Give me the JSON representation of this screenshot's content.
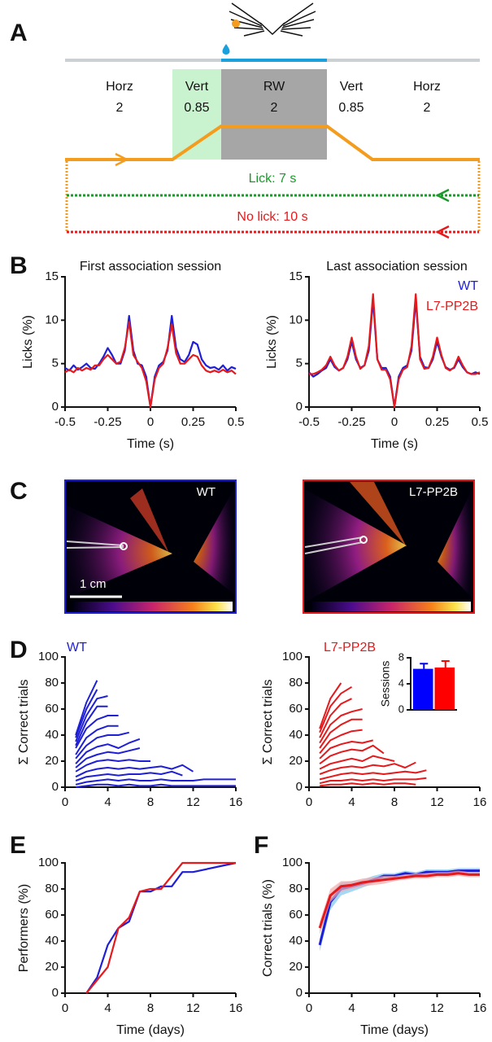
{
  "panel_labels": [
    "A",
    "B",
    "C",
    "D",
    "E",
    "F"
  ],
  "panel_a": {
    "zones": [
      {
        "name": "Horz",
        "value": "2"
      },
      {
        "name": "Vert",
        "value": "0.85"
      },
      {
        "name": "RW",
        "value": "2"
      },
      {
        "name": "Vert",
        "value": "0.85"
      },
      {
        "name": "Horz",
        "value": "2"
      }
    ],
    "lick": "Lick: 7 s",
    "no_lick": "No lick: 10 s"
  },
  "panel_c": {
    "labels": [
      "WT",
      "L7-PP2B"
    ],
    "scale_bar": "1 cm"
  },
  "chart_data": [
    {
      "type": "line",
      "title": "First association session",
      "xlabel": "Time (s)",
      "ylabel": "Licks (%)",
      "xlim": [
        -0.5,
        0.5
      ],
      "xticks": [
        -0.5,
        -0.25,
        0,
        0.25,
        0.5
      ],
      "ylim": [
        0,
        15
      ],
      "yticks": [
        0,
        5,
        10,
        15
      ],
      "x": [
        -0.5,
        -0.475,
        -0.45,
        -0.425,
        -0.4,
        -0.375,
        -0.35,
        -0.325,
        -0.3,
        -0.275,
        -0.25,
        -0.225,
        -0.2,
        -0.175,
        -0.15,
        -0.125,
        -0.1,
        -0.075,
        -0.05,
        -0.025,
        0,
        0.025,
        0.05,
        0.075,
        0.1,
        0.125,
        0.15,
        0.175,
        0.2,
        0.225,
        0.25,
        0.275,
        0.3,
        0.325,
        0.35,
        0.375,
        0.4,
        0.425,
        0.45,
        0.475,
        0.5
      ],
      "series": [
        {
          "color": "#1f1fd6",
          "values": [
            4.5,
            4.2,
            4.8,
            4.3,
            4.6,
            5.0,
            4.5,
            4.4,
            5.0,
            5.8,
            6.8,
            6.0,
            5.0,
            5.0,
            6.5,
            10.5,
            6.5,
            5.0,
            4.8,
            3.5,
            0,
            3.5,
            4.8,
            5.2,
            6.5,
            10.5,
            6.8,
            5.5,
            5.2,
            6.0,
            7.5,
            7.2,
            5.5,
            4.8,
            4.5,
            4.6,
            4.3,
            4.8,
            4.2,
            4.6,
            4.4
          ]
        },
        {
          "color": "#e41a1c",
          "values": [
            4.0,
            4.3,
            4.0,
            4.5,
            4.2,
            4.5,
            4.3,
            4.8,
            4.8,
            5.5,
            6.0,
            5.5,
            5.0,
            5.2,
            6.8,
            9.8,
            6.0,
            5.2,
            4.5,
            3.0,
            0,
            3.2,
            4.5,
            5.0,
            6.8,
            9.5,
            6.2,
            5.0,
            5.0,
            5.5,
            6.0,
            5.8,
            4.8,
            4.2,
            4.0,
            4.2,
            4.0,
            4.3,
            4.0,
            4.2,
            3.8
          ]
        }
      ]
    },
    {
      "type": "line",
      "title": "Last association session",
      "xlabel": "Time (s)",
      "ylabel": "Licks (%)",
      "xlim": [
        -0.5,
        0.5
      ],
      "xticks": [
        -0.5,
        -0.25,
        0,
        0.25,
        0.5
      ],
      "ylim": [
        0,
        15
      ],
      "yticks": [
        0,
        5,
        10,
        15
      ],
      "x": [
        -0.5,
        -0.475,
        -0.45,
        -0.425,
        -0.4,
        -0.375,
        -0.35,
        -0.325,
        -0.3,
        -0.275,
        -0.25,
        -0.225,
        -0.2,
        -0.175,
        -0.15,
        -0.125,
        -0.1,
        -0.075,
        -0.05,
        -0.025,
        0,
        0.025,
        0.05,
        0.075,
        0.1,
        0.125,
        0.15,
        0.175,
        0.2,
        0.225,
        0.25,
        0.275,
        0.3,
        0.325,
        0.35,
        0.375,
        0.4,
        0.425,
        0.45,
        0.475,
        0.5
      ],
      "legend": "upper right",
      "series": [
        {
          "name": "WT",
          "color": "#1f1fd6",
          "values": [
            4.0,
            3.5,
            3.8,
            4.2,
            4.5,
            5.5,
            4.6,
            4.2,
            4.5,
            5.5,
            7.5,
            5.5,
            4.5,
            4.8,
            6.5,
            12.3,
            5.5,
            4.5,
            4.5,
            3.5,
            0,
            3.5,
            4.5,
            4.8,
            6.5,
            12.3,
            5.8,
            4.6,
            4.5,
            5.5,
            7.5,
            5.8,
            4.6,
            4.3,
            4.5,
            5.5,
            4.6,
            4.0,
            3.8,
            4.0,
            3.8
          ]
        },
        {
          "name": "L7-PP2B",
          "color": "#e41a1c",
          "values": [
            3.8,
            3.8,
            4.0,
            4.3,
            4.8,
            5.8,
            4.8,
            4.2,
            4.5,
            5.8,
            8.0,
            5.8,
            4.4,
            4.8,
            7.0,
            13.0,
            5.5,
            4.3,
            4.3,
            3.2,
            0,
            3.2,
            4.3,
            4.6,
            7.0,
            13.0,
            5.5,
            4.4,
            4.5,
            5.8,
            8.0,
            6.0,
            4.5,
            4.2,
            4.6,
            5.8,
            4.8,
            4.0,
            3.8,
            3.8,
            4.0
          ]
        }
      ]
    },
    {
      "type": "line",
      "title": "WT",
      "title_color": "#1f1fd6",
      "ylabel": "Σ Correct trials",
      "xlim": [
        0,
        16
      ],
      "xticks": [
        0,
        4,
        8,
        12,
        16
      ],
      "ylim": [
        0,
        100
      ],
      "yticks": [
        0,
        20,
        40,
        60,
        80,
        100
      ],
      "series": [
        {
          "color": "#1f1fd6",
          "x": [
            1,
            2,
            3
          ],
          "values": [
            40,
            65,
            82
          ]
        },
        {
          "color": "#1f1fd6",
          "x": [
            1,
            2,
            3
          ],
          "values": [
            38,
            60,
            75
          ]
        },
        {
          "color": "#1f1fd6",
          "x": [
            1,
            2,
            3,
            4
          ],
          "values": [
            35,
            55,
            68,
            70
          ]
        },
        {
          "color": "#1f1fd6",
          "x": [
            1,
            2,
            3,
            4
          ],
          "values": [
            32,
            50,
            62,
            62
          ]
        },
        {
          "color": "#1f1fd6",
          "x": [
            1,
            2,
            3,
            4,
            5
          ],
          "values": [
            30,
            45,
            52,
            55,
            55
          ]
        },
        {
          "color": "#1f1fd6",
          "x": [
            1,
            2,
            3,
            4,
            5
          ],
          "values": [
            25,
            38,
            44,
            47,
            47
          ]
        },
        {
          "color": "#1f1fd6",
          "x": [
            1,
            2,
            3,
            4,
            5,
            6
          ],
          "values": [
            22,
            32,
            38,
            40,
            40,
            42
          ]
        },
        {
          "color": "#1f1fd6",
          "x": [
            1,
            2,
            3,
            4,
            5,
            6,
            7
          ],
          "values": [
            18,
            27,
            31,
            33,
            30,
            34,
            37
          ]
        },
        {
          "color": "#1f1fd6",
          "x": [
            1,
            2,
            3,
            4,
            5,
            6,
            7
          ],
          "values": [
            15,
            22,
            25,
            27,
            26,
            28,
            30
          ]
        },
        {
          "color": "#1f1fd6",
          "x": [
            1,
            2,
            3,
            4,
            5,
            6,
            7,
            8
          ],
          "values": [
            12,
            17,
            20,
            21,
            20,
            21,
            20,
            20
          ]
        },
        {
          "color": "#1f1fd6",
          "x": [
            1,
            2,
            3,
            4,
            5,
            6,
            7,
            8,
            9,
            10,
            11,
            12
          ],
          "values": [
            8,
            12,
            14,
            15,
            14,
            15,
            14,
            15,
            16,
            14,
            17,
            12
          ]
        },
        {
          "color": "#1f1fd6",
          "x": [
            1,
            2,
            3,
            4,
            5,
            6,
            7,
            8,
            9,
            10,
            11
          ],
          "values": [
            5,
            8,
            9,
            10,
            9,
            10,
            10,
            11,
            10,
            12,
            9
          ]
        },
        {
          "color": "#1f1fd6",
          "x": [
            1,
            2,
            3,
            4,
            5,
            6,
            7,
            8,
            9,
            10,
            11,
            12,
            13,
            14,
            15,
            16
          ],
          "values": [
            2,
            4,
            5,
            6,
            5,
            6,
            5,
            5,
            6,
            5,
            5,
            5,
            6,
            6,
            6,
            6
          ]
        },
        {
          "color": "#1f1fd6",
          "x": [
            1,
            2,
            3,
            4,
            5,
            6,
            7,
            8,
            9,
            10,
            11,
            12,
            13,
            14,
            15,
            16
          ],
          "values": [
            0,
            1,
            2,
            2,
            1,
            2,
            1,
            1,
            2,
            1,
            1,
            1,
            1,
            1,
            1,
            1
          ]
        }
      ]
    },
    {
      "type": "bar",
      "ylabel": "Sessions",
      "ylim": [
        0,
        8
      ],
      "yticks": [
        0,
        4,
        8
      ],
      "categories": [
        null,
        null
      ],
      "values": [
        6.3,
        6.5
      ],
      "errors": [
        0.8,
        1.0
      ],
      "colors": [
        "#0000ff",
        "#ff0000"
      ]
    },
    {
      "type": "line",
      "title": "L7-PP2B",
      "title_color": "#e41a1c",
      "ylabel": "Σ Correct trials",
      "xlim": [
        0,
        16
      ],
      "xticks": [
        0,
        4,
        8,
        12,
        16
      ],
      "ylim": [
        0,
        100
      ],
      "yticks": [
        0,
        20,
        40,
        60,
        80,
        100
      ],
      "series": [
        {
          "color": "#e41a1c",
          "x": [
            1,
            2,
            3
          ],
          "values": [
            45,
            68,
            80
          ]
        },
        {
          "color": "#e41a1c",
          "x": [
            1,
            2,
            3,
            4
          ],
          "values": [
            42,
            62,
            72,
            77
          ]
        },
        {
          "color": "#e41a1c",
          "x": [
            1,
            2,
            3,
            4
          ],
          "values": [
            38,
            55,
            64,
            68
          ]
        },
        {
          "color": "#e41a1c",
          "x": [
            1,
            2,
            3,
            4,
            5
          ],
          "values": [
            34,
            48,
            55,
            58,
            60
          ]
        },
        {
          "color": "#e41a1c",
          "x": [
            1,
            2,
            3,
            4,
            5
          ],
          "values": [
            30,
            42,
            48,
            52,
            52
          ]
        },
        {
          "color": "#e41a1c",
          "x": [
            1,
            2,
            3,
            4,
            5
          ],
          "values": [
            26,
            36,
            40,
            43,
            44
          ]
        },
        {
          "color": "#e41a1c",
          "x": [
            1,
            2,
            3,
            4,
            5,
            6
          ],
          "values": [
            22,
            30,
            33,
            35,
            34,
            36
          ]
        },
        {
          "color": "#e41a1c",
          "x": [
            1,
            2,
            3,
            4,
            5,
            6,
            7
          ],
          "values": [
            18,
            24,
            27,
            29,
            28,
            32,
            26
          ]
        },
        {
          "color": "#e41a1c",
          "x": [
            1,
            2,
            3,
            4,
            5,
            6,
            7,
            8
          ],
          "values": [
            14,
            18,
            20,
            22,
            20,
            24,
            22,
            20
          ]
        },
        {
          "color": "#e41a1c",
          "x": [
            1,
            2,
            3,
            4,
            5,
            6,
            7,
            8,
            9,
            10
          ],
          "values": [
            10,
            13,
            15,
            16,
            15,
            17,
            16,
            18,
            15,
            19
          ]
        },
        {
          "color": "#e41a1c",
          "x": [
            1,
            2,
            3,
            4,
            5,
            6,
            7,
            8,
            9,
            10,
            11
          ],
          "values": [
            6,
            8,
            10,
            11,
            10,
            11,
            10,
            11,
            12,
            11,
            13
          ]
        },
        {
          "color": "#e41a1c",
          "x": [
            1,
            2,
            3,
            4,
            5,
            6,
            7,
            8,
            9,
            10,
            11
          ],
          "values": [
            3,
            5,
            5,
            6,
            5,
            6,
            5,
            6,
            6,
            6,
            7
          ]
        },
        {
          "color": "#e41a1c",
          "x": [
            1,
            2,
            3,
            4,
            5,
            6,
            7,
            8,
            9,
            10
          ],
          "values": [
            1,
            2,
            2,
            3,
            2,
            3,
            2,
            3,
            3,
            2
          ]
        }
      ]
    },
    {
      "type": "line",
      "xlabel": "Time (days)",
      "ylabel": "Performers (%)",
      "xlim": [
        0,
        16
      ],
      "xticks": [
        0,
        4,
        8,
        12,
        16
      ],
      "ylim": [
        0,
        100
      ],
      "yticks": [
        0,
        20,
        40,
        60,
        80,
        100
      ],
      "series": [
        {
          "color": "#1f1fd6",
          "x": [
            2,
            3,
            4,
            5,
            6,
            7,
            8,
            9,
            10,
            11,
            12,
            16
          ],
          "values": [
            0,
            12,
            37,
            50,
            55,
            78,
            78,
            82,
            82,
            93,
            93,
            100
          ]
        },
        {
          "color": "#e41a1c",
          "x": [
            2,
            3,
            4,
            5,
            6,
            7,
            8,
            9,
            10,
            11,
            16
          ],
          "values": [
            0,
            10,
            20,
            50,
            58,
            78,
            80,
            80,
            90,
            100,
            100
          ]
        }
      ]
    },
    {
      "type": "line",
      "xlabel": "Time (days)",
      "ylabel": "Correct trials (%)",
      "xlim": [
        0,
        16
      ],
      "xticks": [
        0,
        4,
        8,
        12,
        16
      ],
      "ylim": [
        0,
        100
      ],
      "yticks": [
        0,
        20,
        40,
        60,
        80,
        100
      ],
      "series": [
        {
          "color": "#1f1fd6",
          "band_color": "#7fc8f0",
          "x": [
            1,
            2,
            3,
            4,
            5,
            6,
            7,
            8,
            9,
            10,
            11,
            12,
            13,
            14,
            15,
            16
          ],
          "values": [
            37,
            70,
            80,
            82,
            84,
            87,
            90,
            90,
            92,
            91,
            93,
            93,
            93,
            94,
            94,
            94
          ],
          "errors": [
            5,
            6,
            5,
            4,
            3,
            3,
            2,
            2,
            2,
            2,
            2,
            2,
            2,
            2,
            2,
            2
          ]
        },
        {
          "color": "#e41a1c",
          "band_color": "#f4a9a9",
          "x": [
            1,
            2,
            3,
            4,
            5,
            6,
            7,
            8,
            9,
            10,
            11,
            12,
            13,
            14,
            15,
            16
          ],
          "values": [
            50,
            75,
            82,
            83,
            85,
            86,
            87,
            88,
            89,
            90,
            90,
            91,
            91,
            92,
            91,
            91
          ],
          "errors": [
            5,
            5,
            4,
            3,
            3,
            3,
            3,
            2,
            2,
            2,
            2,
            2,
            2,
            2,
            2,
            2
          ]
        }
      ]
    }
  ]
}
